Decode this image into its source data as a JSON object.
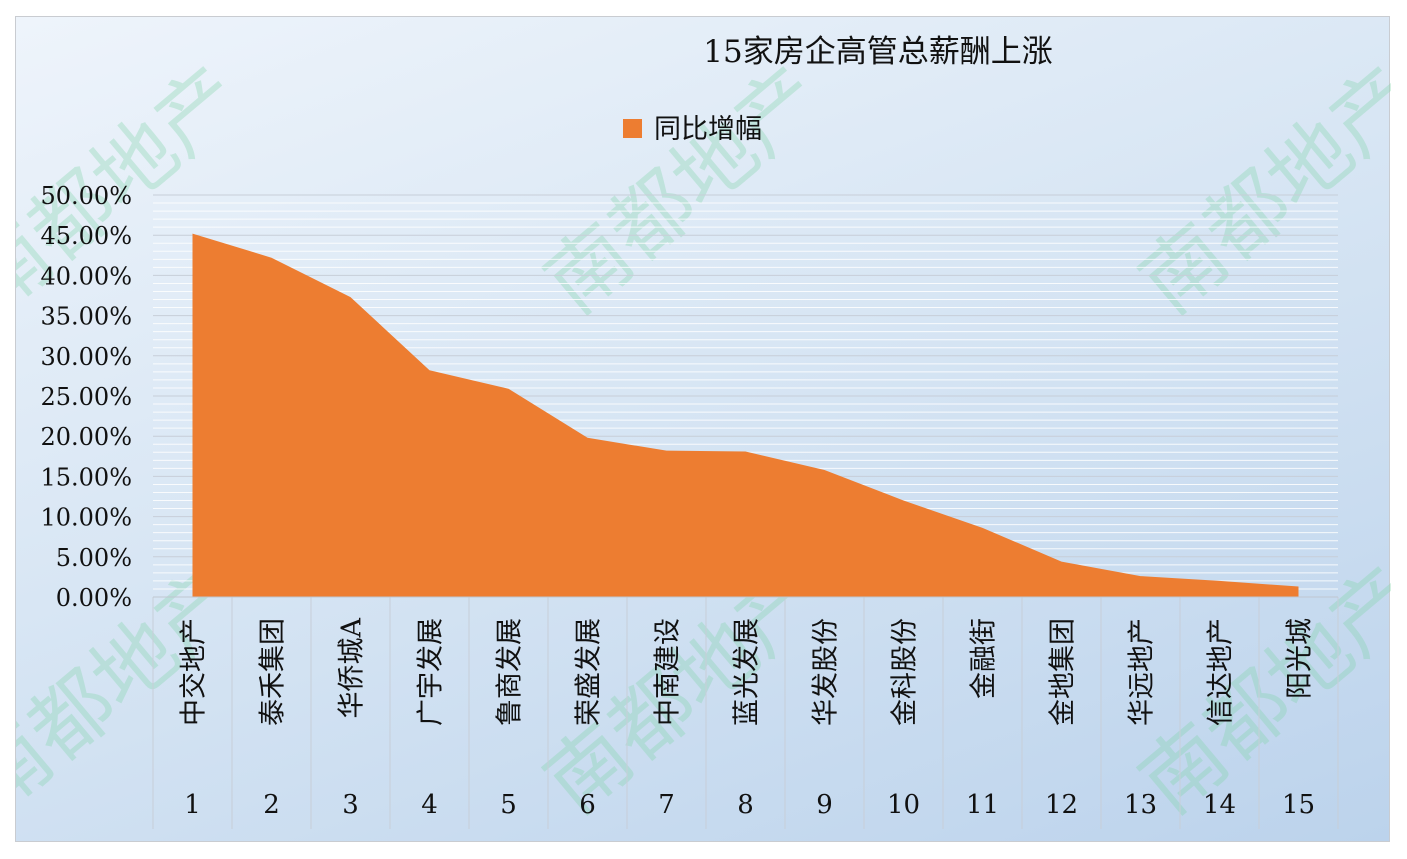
{
  "chart_data": {
    "type": "area",
    "title": "15家房企高管总薪酬上涨",
    "legend": {
      "position": "top",
      "entries": [
        "同比增幅"
      ]
    },
    "series": [
      {
        "name": "同比增幅",
        "color": "#ed7d31",
        "values": [
          45.2,
          42.2,
          37.3,
          28.2,
          25.9,
          19.8,
          18.2,
          18.1,
          15.8,
          12.0,
          8.6,
          4.4,
          2.6,
          2.0,
          1.3
        ]
      }
    ],
    "categories": [
      {
        "name": "中交地产",
        "index": "1"
      },
      {
        "name": "泰禾集团",
        "index": "2"
      },
      {
        "name": "华侨城A",
        "index": "3"
      },
      {
        "name": "广宇发展",
        "index": "4"
      },
      {
        "name": "鲁商发展",
        "index": "5"
      },
      {
        "name": "荣盛发展",
        "index": "6"
      },
      {
        "name": "中南建设",
        "index": "7"
      },
      {
        "name": "蓝光发展",
        "index": "8"
      },
      {
        "name": "华发股份",
        "index": "9"
      },
      {
        "name": "金科股份",
        "index": "10"
      },
      {
        "name": "金融街",
        "index": "11"
      },
      {
        "name": "金地集团",
        "index": "12"
      },
      {
        "name": "华远地产",
        "index": "13"
      },
      {
        "name": "信达地产",
        "index": "14"
      },
      {
        "name": "阳光城",
        "index": "15"
      }
    ],
    "ylim": [
      0,
      50
    ],
    "y_ticks": [
      "0.00%",
      "5.00%",
      "10.00%",
      "15.00%",
      "20.00%",
      "25.00%",
      "30.00%",
      "35.00%",
      "40.00%",
      "45.00%",
      "50.00%"
    ],
    "grid": true,
    "watermark": "南都地产"
  }
}
